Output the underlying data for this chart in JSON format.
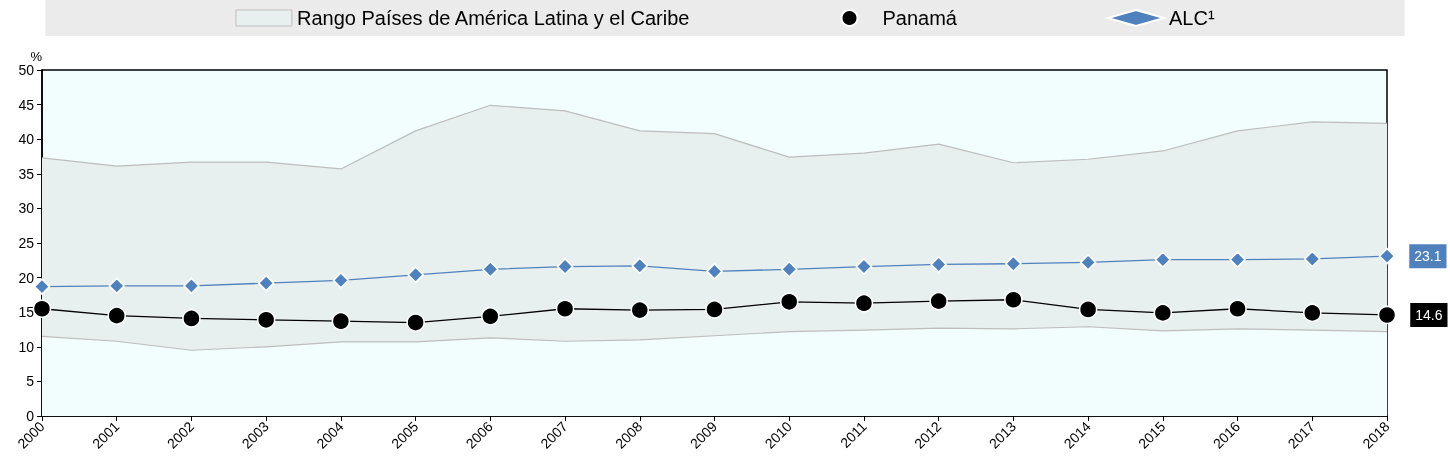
{
  "chart_data": {
    "type": "line",
    "ylabel": "%",
    "categories": [
      "2000",
      "2001",
      "2002",
      "2003",
      "2004",
      "2005",
      "2006",
      "2007",
      "2008",
      "2009",
      "2010",
      "2011",
      "2012",
      "2013",
      "2014",
      "2015",
      "2016",
      "2017",
      "2018"
    ],
    "ylim": [
      0,
      50
    ],
    "yticks": [
      0,
      5,
      10,
      15,
      20,
      25,
      30,
      35,
      40,
      45,
      50
    ],
    "grid": false,
    "legend": "top",
    "line_style": "solid",
    "series": [
      {
        "name": "Rango Países de América Latina y el Caribe",
        "type": "area",
        "color": "#e8f0ef",
        "values": [
          37.3,
          36.1,
          36.7,
          36.7,
          35.7,
          41.2,
          44.9,
          44.1,
          41.2,
          40.8,
          37.4,
          38.0,
          39.3,
          36.6,
          37.1,
          38.3,
          41.2,
          42.5,
          42.3
        ]
      },
      {
        "type": "area",
        "color": "#f2fdfd",
        "values": [
          11.5,
          10.8,
          9.5,
          10.0,
          10.7,
          10.7,
          11.3,
          10.8,
          11.0,
          11.6,
          12.2,
          12.4,
          12.7,
          12.6,
          12.9,
          12.3,
          12.6,
          12.4,
          12.2
        ]
      },
      {
        "name": "Panamá",
        "color": "#000000",
        "marker": "circle",
        "values": [
          15.5,
          14.5,
          14.1,
          13.9,
          13.7,
          13.5,
          14.4,
          15.5,
          15.3,
          15.4,
          16.5,
          16.3,
          16.6,
          16.8,
          15.4,
          14.9,
          15.5,
          14.9,
          14.6
        ],
        "value_labels": [
          null,
          null,
          null,
          null,
          null,
          null,
          null,
          null,
          null,
          null,
          null,
          null,
          null,
          null,
          null,
          null,
          null,
          null,
          "14.6"
        ]
      },
      {
        "name": "ALC¹",
        "color": "#4f81bd",
        "marker": "diamond",
        "values": [
          18.7,
          18.8,
          18.8,
          19.2,
          19.6,
          20.4,
          21.2,
          21.6,
          21.7,
          20.9,
          21.2,
          21.6,
          21.9,
          22.0,
          22.2,
          22.6,
          22.6,
          22.7,
          23.1
        ],
        "value_labels": [
          null,
          null,
          null,
          null,
          null,
          null,
          null,
          null,
          null,
          null,
          null,
          null,
          null,
          null,
          null,
          null,
          null,
          null,
          "23.1"
        ]
      }
    ]
  }
}
